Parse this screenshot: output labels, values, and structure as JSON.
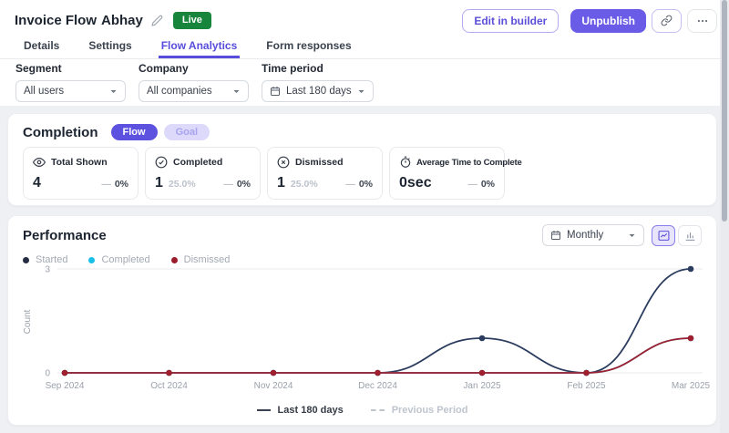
{
  "header": {
    "title": "Invoice Flow",
    "name": "Abhay",
    "live_badge": "Live",
    "edit_in_builder": "Edit in builder",
    "unpublish": "Unpublish"
  },
  "tabs": [
    {
      "label": "Details",
      "active": false
    },
    {
      "label": "Settings",
      "active": false
    },
    {
      "label": "Flow Analytics",
      "active": true
    },
    {
      "label": "Form responses",
      "active": false
    }
  ],
  "filters": {
    "segment": {
      "label": "Segment",
      "value": "All users"
    },
    "company": {
      "label": "Company",
      "value": "All companies"
    },
    "time_period": {
      "label": "Time period",
      "value": "Last 180 days"
    }
  },
  "completion": {
    "title": "Completion",
    "toggles": [
      {
        "label": "Flow",
        "active": true
      },
      {
        "label": "Goal",
        "active": false
      }
    ],
    "stats": [
      {
        "label": "Total Shown",
        "icon": "eye-icon",
        "value": "4",
        "sub": "",
        "trend": "—",
        "delta": "0%"
      },
      {
        "label": "Completed",
        "icon": "check-circle-icon",
        "value": "1",
        "sub": "25.0%",
        "trend": "—",
        "delta": "0%"
      },
      {
        "label": "Dismissed",
        "icon": "x-circle-icon",
        "value": "1",
        "sub": "25.0%",
        "trend": "—",
        "delta": "0%"
      },
      {
        "label": "Average Time to Complete",
        "icon": "stopwatch-icon",
        "value": "0sec",
        "sub": "",
        "trend": "—",
        "delta": "0%"
      }
    ]
  },
  "performance": {
    "title": "Performance",
    "period_select": "Monthly",
    "legend": [
      {
        "label": "Started",
        "color": "#232c42"
      },
      {
        "label": "Completed",
        "color": "#19bfe8"
      },
      {
        "label": "Dismissed",
        "color": "#9c1c2c"
      }
    ],
    "bottom_legend": {
      "current": "Last 180 days",
      "previous": "Previous Period"
    }
  },
  "chart_data": {
    "type": "line",
    "x": [
      "Sep 2024",
      "Oct 2024",
      "Nov 2024",
      "Dec 2024",
      "Jan 2025",
      "Feb 2025",
      "Mar 2025"
    ],
    "series": [
      {
        "name": "Started",
        "color": "#2b3c5e",
        "values": [
          0,
          0,
          0,
          0,
          1,
          0,
          3
        ]
      },
      {
        "name": "Completed",
        "color": "#19bfe8",
        "values": [
          0,
          0,
          0,
          0,
          0,
          0,
          1
        ]
      },
      {
        "name": "Dismissed",
        "color": "#a01f2f",
        "values": [
          0,
          0,
          0,
          0,
          0,
          0,
          1
        ]
      }
    ],
    "title": "Performance",
    "xlabel": "",
    "ylabel": "Count",
    "yticks": [
      0,
      3
    ],
    "ylim": [
      0,
      3
    ],
    "grid": "horizontal",
    "legend_position": "top-left"
  },
  "colors": {
    "accent": "#5b4fd9",
    "live_green": "#17853c",
    "started": "#2b3c5e",
    "completed": "#19bfe8",
    "dismissed": "#a01f2f"
  }
}
